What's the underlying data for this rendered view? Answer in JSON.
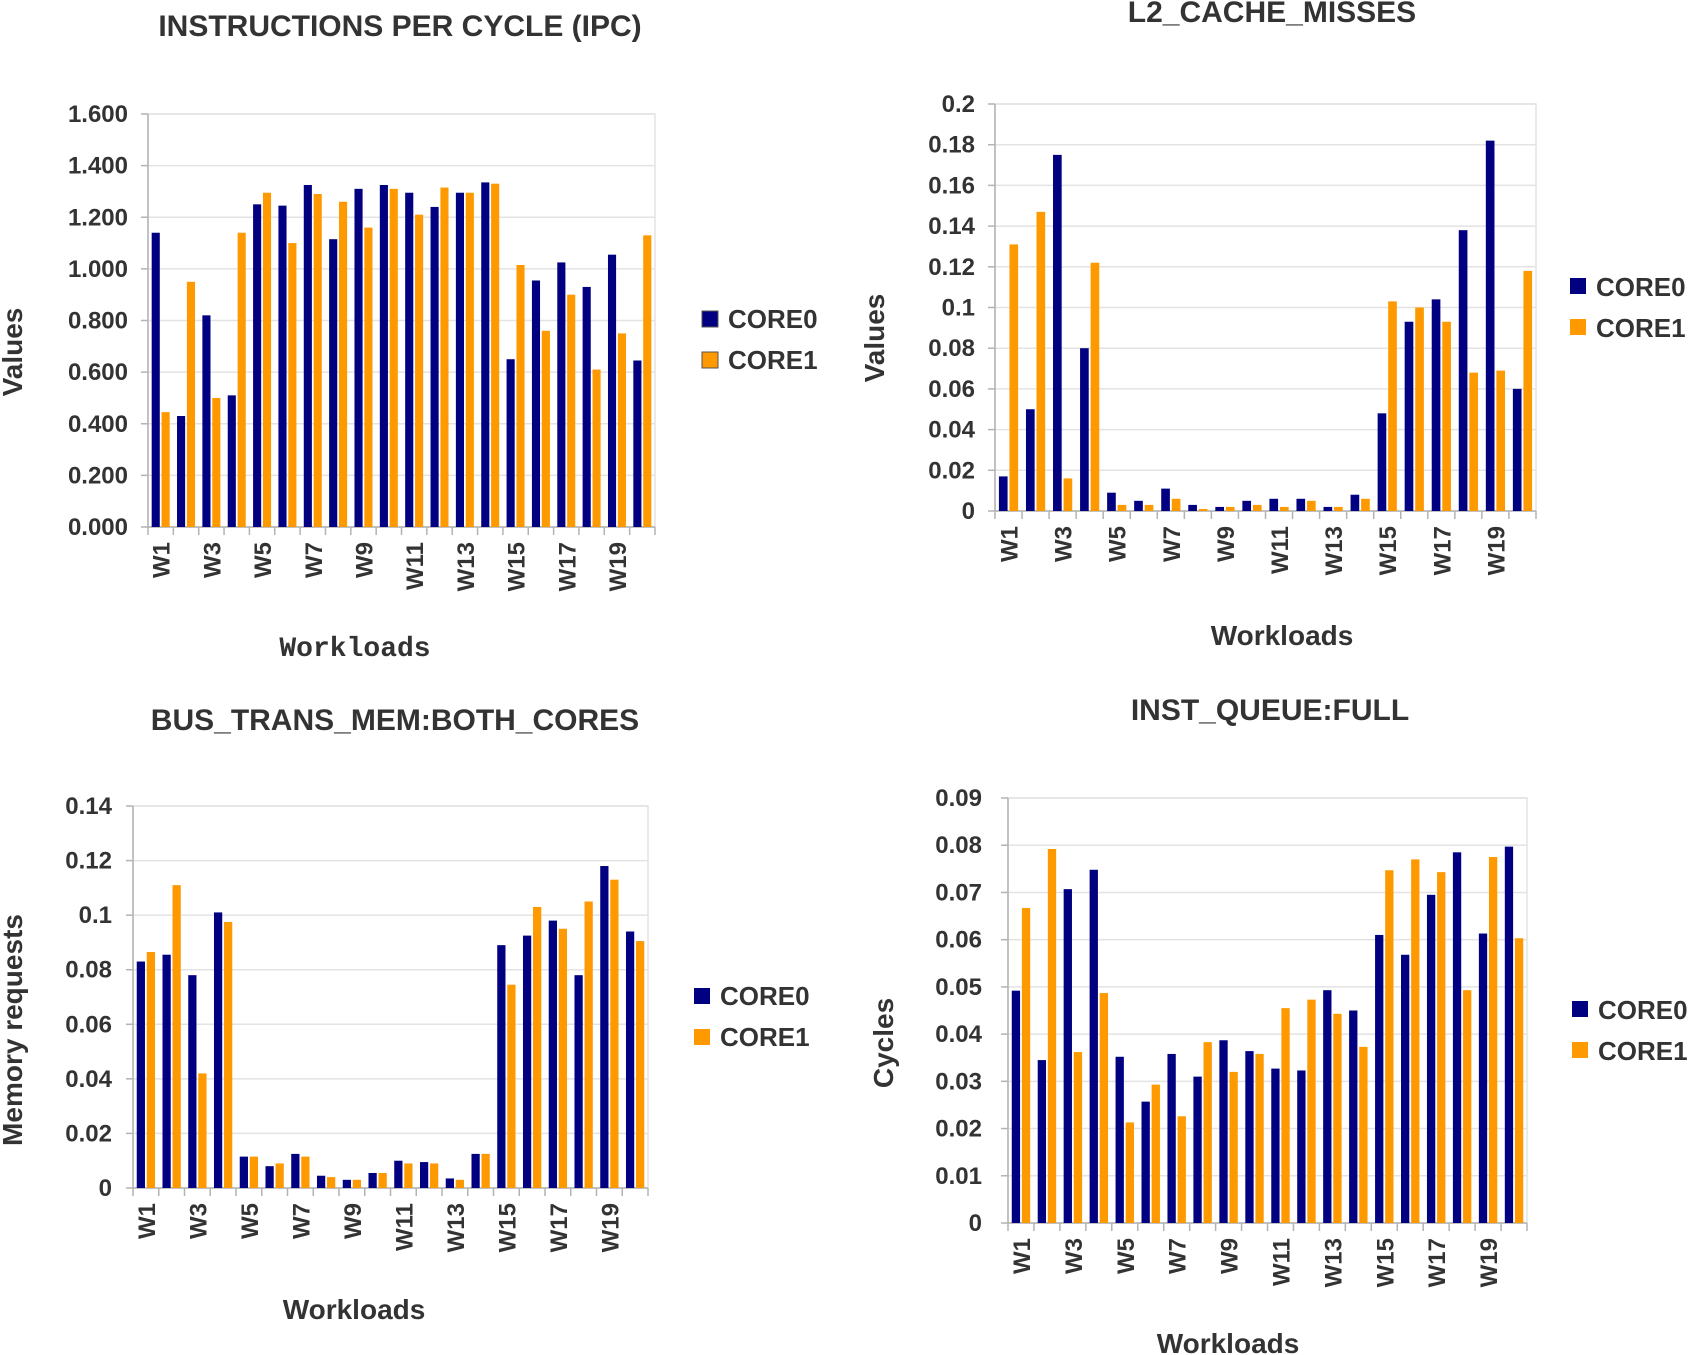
{
  "colors": {
    "core0": "#000080",
    "core1": "#ff9900",
    "grid": "#e3e3e3",
    "axis": "#b3b3b3"
  },
  "chart_data": [
    {
      "id": "ipc",
      "type": "bar",
      "title": "INSTRUCTIONS PER CYCLE (IPC)",
      "xlabel": "Workloads",
      "ylabel": "Values",
      "ylim": [
        0,
        1.6
      ],
      "yticks": [
        "0.000",
        "0.200",
        "0.400",
        "0.600",
        "0.800",
        "1.000",
        "1.200",
        "1.400",
        "1.600"
      ],
      "categories": [
        "W1",
        "W2",
        "W3",
        "W4",
        "W5",
        "W6",
        "W7",
        "W8",
        "W9",
        "W10",
        "W11",
        "W12",
        "W13",
        "W14",
        "W15",
        "W16",
        "W17",
        "W18",
        "W19",
        "W20"
      ],
      "xtick_labels": [
        "W1",
        "W3",
        "W5",
        "W7",
        "W9",
        "W11",
        "W13",
        "W15",
        "W17",
        "W19"
      ],
      "legend": [
        "CORE0",
        "CORE1"
      ],
      "series": [
        {
          "name": "CORE0",
          "values": [
            1.14,
            0.43,
            0.82,
            0.51,
            1.25,
            1.245,
            1.325,
            1.115,
            1.31,
            1.325,
            1.295,
            1.24,
            1.295,
            1.335,
            0.65,
            0.955,
            1.025,
            0.93,
            1.055,
            0.645
          ]
        },
        {
          "name": "CORE1",
          "values": [
            0.445,
            0.95,
            0.5,
            1.14,
            1.295,
            1.1,
            1.29,
            1.26,
            1.16,
            1.31,
            1.21,
            1.315,
            1.295,
            1.33,
            1.015,
            0.76,
            0.9,
            0.61,
            0.75,
            1.13
          ]
        }
      ]
    },
    {
      "id": "l2",
      "type": "bar",
      "title": "L2_CACHE_MISSES",
      "xlabel": "Workloads",
      "ylabel": "Values",
      "ylim": [
        0,
        0.2
      ],
      "yticks": [
        "0",
        "0.02",
        "0.04",
        "0.06",
        "0.08",
        "0.1",
        "0.12",
        "0.14",
        "0.16",
        "0.18",
        "0.2"
      ],
      "categories": [
        "W1",
        "W2",
        "W3",
        "W4",
        "W5",
        "W6",
        "W7",
        "W8",
        "W9",
        "W10",
        "W11",
        "W12",
        "W13",
        "W14",
        "W15",
        "W16",
        "W17",
        "W18",
        "W19",
        "W20"
      ],
      "xtick_labels": [
        "W1",
        "W3",
        "W5",
        "W7",
        "W9",
        "W11",
        "W13",
        "W15",
        "W17",
        "W19"
      ],
      "legend": [
        "CORE0",
        "CORE1"
      ],
      "series": [
        {
          "name": "CORE0",
          "values": [
            0.017,
            0.05,
            0.175,
            0.08,
            0.009,
            0.005,
            0.011,
            0.003,
            0.002,
            0.005,
            0.006,
            0.006,
            0.002,
            0.008,
            0.048,
            0.093,
            0.104,
            0.138,
            0.182,
            0.06
          ]
        },
        {
          "name": "CORE1",
          "values": [
            0.131,
            0.147,
            0.016,
            0.122,
            0.003,
            0.003,
            0.006,
            0.001,
            0.002,
            0.003,
            0.002,
            0.005,
            0.002,
            0.006,
            0.103,
            0.1,
            0.093,
            0.068,
            0.069,
            0.118
          ]
        }
      ]
    },
    {
      "id": "bus",
      "type": "bar",
      "title": "BUS_TRANS_MEM:BOTH_CORES",
      "xlabel": "Workloads",
      "ylabel": "Memory requests",
      "ylim": [
        0,
        0.14
      ],
      "yticks": [
        "0",
        "0.02",
        "0.04",
        "0.06",
        "0.08",
        "0.1",
        "0.12",
        "0.14"
      ],
      "categories": [
        "W1",
        "W2",
        "W3",
        "W4",
        "W5",
        "W6",
        "W7",
        "W8",
        "W9",
        "W10",
        "W11",
        "W12",
        "W13",
        "W14",
        "W15",
        "W16",
        "W17",
        "W18",
        "W19",
        "W20"
      ],
      "xtick_labels": [
        "W1",
        "W3",
        "W5",
        "W7",
        "W9",
        "W11",
        "W13",
        "W15",
        "W17",
        "W19"
      ],
      "legend": [
        "CORE0",
        "CORE1"
      ],
      "series": [
        {
          "name": "CORE0",
          "values": [
            0.083,
            0.0855,
            0.078,
            0.101,
            0.0115,
            0.008,
            0.0125,
            0.0045,
            0.003,
            0.0055,
            0.01,
            0.0095,
            0.0035,
            0.0125,
            0.089,
            0.0925,
            0.098,
            0.078,
            0.118,
            0.094
          ]
        },
        {
          "name": "CORE1",
          "values": [
            0.0865,
            0.111,
            0.042,
            0.0975,
            0.0115,
            0.009,
            0.0115,
            0.004,
            0.003,
            0.0055,
            0.009,
            0.009,
            0.003,
            0.0125,
            0.0745,
            0.103,
            0.095,
            0.105,
            0.113,
            0.0905
          ]
        }
      ]
    },
    {
      "id": "instq",
      "type": "bar",
      "title": "INST_QUEUE:FULL",
      "xlabel": "Workloads",
      "ylabel": "Cycles",
      "ylim": [
        0,
        0.09
      ],
      "yticks": [
        "0",
        "0.01",
        "0.02",
        "0.03",
        "0.04",
        "0.05",
        "0.06",
        "0.07",
        "0.08",
        "0.09"
      ],
      "categories": [
        "W1",
        "W2",
        "W3",
        "W4",
        "W5",
        "W6",
        "W7",
        "W8",
        "W9",
        "W10",
        "W11",
        "W12",
        "W13",
        "W14",
        "W15",
        "W16",
        "W17",
        "W18",
        "W19",
        "W20"
      ],
      "xtick_labels": [
        "W1",
        "W3",
        "W5",
        "W7",
        "W9",
        "W11",
        "W13",
        "W15",
        "W17",
        "W19"
      ],
      "legend": [
        "CORE0",
        "CORE1"
      ],
      "series": [
        {
          "name": "CORE0",
          "values": [
            0.0492,
            0.0345,
            0.0707,
            0.0748,
            0.0352,
            0.0257,
            0.0358,
            0.031,
            0.0387,
            0.0364,
            0.0327,
            0.0323,
            0.0493,
            0.045,
            0.061,
            0.0568,
            0.0695,
            0.0785,
            0.0613,
            0.0797
          ]
        },
        {
          "name": "CORE1",
          "values": [
            0.0667,
            0.0792,
            0.0362,
            0.0487,
            0.0213,
            0.0293,
            0.0226,
            0.0383,
            0.032,
            0.0358,
            0.0455,
            0.0473,
            0.0443,
            0.0373,
            0.0747,
            0.077,
            0.0743,
            0.0493,
            0.0775,
            0.0603
          ]
        }
      ]
    }
  ]
}
